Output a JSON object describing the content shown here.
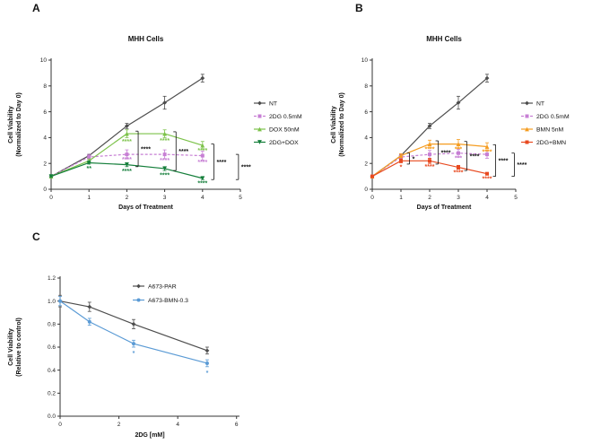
{
  "figure": {
    "background": "#ffffff",
    "panels": [
      {
        "letter": "A"
      },
      {
        "letter": "B"
      },
      {
        "letter": "C"
      }
    ]
  },
  "chart_data": [
    {
      "type": "line",
      "panel": "A",
      "title": "MHH Cells",
      "xlabel": "Days of Treatment",
      "ylabel_lines": [
        "Cell Viability",
        "(Normalized to Day 0)"
      ],
      "xlim": [
        0,
        5
      ],
      "ylim": [
        0,
        10
      ],
      "xticks": [
        "0",
        "1",
        "2",
        "3",
        "4",
        "5"
      ],
      "yticks": [
        "0",
        "2",
        "4",
        "6",
        "8",
        "10"
      ],
      "legend_position": "right",
      "grid": false,
      "series": [
        {
          "name": "NT",
          "color": "#4d4d4d",
          "dash": false,
          "marker": "diamond",
          "x": [
            0,
            1,
            2,
            3,
            4
          ],
          "y": [
            1.0,
            2.6,
            4.9,
            6.7,
            8.6
          ],
          "err": [
            0.05,
            0.1,
            0.2,
            0.5,
            0.3
          ]
        },
        {
          "name": "2DG 0.5mM",
          "color": "#c77fd4",
          "dash": true,
          "marker": "square",
          "x": [
            0,
            1,
            2,
            3,
            4
          ],
          "y": [
            1.0,
            2.5,
            2.7,
            2.7,
            2.6
          ],
          "err": [
            0.05,
            0.2,
            0.35,
            0.35,
            0.35
          ]
        },
        {
          "name": "DOX 50nM",
          "color": "#7cc24a",
          "dash": false,
          "marker": "triangle",
          "x": [
            0,
            1,
            2,
            3,
            4
          ],
          "y": [
            1.0,
            2.2,
            4.3,
            4.3,
            3.4
          ],
          "err": [
            0.05,
            0.15,
            0.3,
            0.3,
            0.3
          ]
        },
        {
          "name": "2DG+DOX",
          "color": "#157f3b",
          "dash": false,
          "marker": "triangle-down",
          "x": [
            0,
            1,
            2,
            3,
            4
          ],
          "y": [
            1.0,
            2.05,
            1.9,
            1.6,
            0.85
          ],
          "err": [
            0.05,
            0.1,
            0.15,
            0.15,
            0.1
          ]
        }
      ],
      "annotations": [
        {
          "x": 1,
          "y": 1.45,
          "text": "**",
          "color": "#157f3b"
        },
        {
          "x": 2,
          "y": 3.55,
          "text": "****",
          "color": "#7cc24a"
        },
        {
          "x": 2,
          "y": 2.15,
          "text": "****",
          "color": "#c77fd4"
        },
        {
          "x": 2,
          "y": 1.25,
          "text": "****",
          "color": "#157f3b"
        },
        {
          "x": 3,
          "y": 3.6,
          "text": "****",
          "color": "#7cc24a"
        },
        {
          "x": 3,
          "y": 2.1,
          "text": "****",
          "color": "#c77fd4"
        },
        {
          "x": 3,
          "y": 0.95,
          "text": "****",
          "color": "#157f3b"
        },
        {
          "x": 4,
          "y": 2.85,
          "text": "****",
          "color": "#7cc24a"
        },
        {
          "x": 4,
          "y": 1.95,
          "text": "****",
          "color": "#c77fd4"
        },
        {
          "x": 4,
          "y": 0.3,
          "text": "****",
          "color": "#157f3b"
        }
      ],
      "brackets": [
        {
          "x": 2.3,
          "y1": 4.5,
          "y2": 1.75,
          "label": "****"
        },
        {
          "x": 3.3,
          "y1": 4.45,
          "y2": 1.45,
          "label": "****"
        },
        {
          "x": 4.3,
          "y1": 3.5,
          "y2": 0.75,
          "label": "****"
        },
        {
          "x": 4.95,
          "y1": 2.7,
          "y2": 0.75,
          "label": "****"
        }
      ]
    },
    {
      "type": "line",
      "panel": "B",
      "title": "MHH Cells",
      "xlabel": "Days of Treatment",
      "ylabel_lines": [
        "Cell Viability",
        "(Normalized to Day 0)"
      ],
      "xlim": [
        0,
        5
      ],
      "ylim": [
        0,
        10
      ],
      "xticks": [
        "0",
        "1",
        "2",
        "3",
        "4",
        "5"
      ],
      "yticks": [
        "0",
        "2",
        "4",
        "6",
        "8",
        "10"
      ],
      "legend_position": "right",
      "grid": false,
      "series": [
        {
          "name": "NT",
          "color": "#4d4d4d",
          "dash": false,
          "marker": "diamond",
          "x": [
            0,
            1,
            2,
            3,
            4
          ],
          "y": [
            1.0,
            2.6,
            4.9,
            6.7,
            8.6
          ],
          "err": [
            0.05,
            0.1,
            0.2,
            0.5,
            0.3
          ]
        },
        {
          "name": "2DG 0.5mM",
          "color": "#c77fd4",
          "dash": true,
          "marker": "square",
          "x": [
            0,
            1,
            2,
            3,
            4
          ],
          "y": [
            1.0,
            2.5,
            2.7,
            2.8,
            2.7
          ],
          "err": [
            0.05,
            0.2,
            0.3,
            0.3,
            0.3
          ]
        },
        {
          "name": "BMN 5nM",
          "color": "#f59c20",
          "dash": false,
          "marker": "triangle",
          "x": [
            0,
            1,
            2,
            3,
            4
          ],
          "y": [
            1.0,
            2.6,
            3.5,
            3.5,
            3.3
          ],
          "err": [
            0.05,
            0.15,
            0.3,
            0.35,
            0.3
          ]
        },
        {
          "name": "2DG+BMN",
          "color": "#e8491f",
          "dash": false,
          "marker": "square",
          "x": [
            0,
            1,
            2,
            3,
            4
          ],
          "y": [
            1.0,
            2.2,
            2.2,
            1.7,
            1.2
          ],
          "err": [
            0.05,
            0.15,
            0.2,
            0.15,
            0.1
          ]
        }
      ],
      "annotations": [
        {
          "x": 1,
          "y": 1.55,
          "text": "*",
          "color": "#e8491f"
        },
        {
          "x": 2,
          "y": 2.95,
          "text": "****",
          "color": "#f59c20"
        },
        {
          "x": 2,
          "y": 1.6,
          "text": "****",
          "color": "#e8491f"
        },
        {
          "x": 3,
          "y": 2.95,
          "text": "***",
          "color": "#f59c20"
        },
        {
          "x": 3,
          "y": 2.25,
          "text": "***",
          "color": "#c77fd4"
        },
        {
          "x": 3,
          "y": 1.15,
          "text": "****",
          "color": "#e8491f"
        },
        {
          "x": 4,
          "y": 2.75,
          "text": "****",
          "color": "#f59c20"
        },
        {
          "x": 4,
          "y": 0.65,
          "text": "****",
          "color": "#e8491f"
        }
      ],
      "brackets": [
        {
          "x": 1.3,
          "y1": 2.8,
          "y2": 1.95,
          "label": "*"
        },
        {
          "x": 2.3,
          "y1": 3.75,
          "y2": 1.95,
          "label": "****"
        },
        {
          "x": 3.3,
          "y1": 3.7,
          "y2": 1.45,
          "label": "****"
        },
        {
          "x": 4.3,
          "y1": 3.45,
          "y2": 1.0,
          "label": "****"
        },
        {
          "x": 4.95,
          "y1": 2.8,
          "y2": 1.0,
          "label": "****"
        }
      ]
    },
    {
      "type": "line",
      "panel": "C",
      "title": "",
      "xlabel": "2DG [mM]",
      "ylabel_lines": [
        "Cell Viability",
        "(Relative to control)"
      ],
      "xlim": [
        0,
        6.1
      ],
      "ylim": [
        0,
        1.2
      ],
      "xticks": [
        "0",
        "2",
        "4",
        "6"
      ],
      "yticks": [
        "0.0",
        "0.2",
        "0.4",
        "0.6",
        "0.8",
        "1.0",
        "1.2"
      ],
      "legend_position": "inside",
      "grid": false,
      "series": [
        {
          "name": "A673-PAR",
          "color": "#4d4d4d",
          "dash": false,
          "marker": "diamond",
          "x": [
            0,
            1,
            2.5,
            5
          ],
          "y": [
            1.0,
            0.95,
            0.8,
            0.57
          ],
          "err": [
            0.05,
            0.04,
            0.04,
            0.03
          ]
        },
        {
          "name": "A673-BMN-0.3",
          "color": "#5b9bd5",
          "dash": false,
          "marker": "circle",
          "x": [
            0,
            1,
            2.5,
            5
          ],
          "y": [
            1.0,
            0.82,
            0.63,
            0.46
          ],
          "err": [
            0.04,
            0.03,
            0.03,
            0.03
          ]
        }
      ],
      "annotations": [
        {
          "x": 2.5,
          "y": 0.53,
          "text": "*",
          "color": "#5b9bd5"
        },
        {
          "x": 5,
          "y": 0.36,
          "text": "*",
          "color": "#5b9bd5"
        }
      ],
      "brackets": []
    }
  ]
}
